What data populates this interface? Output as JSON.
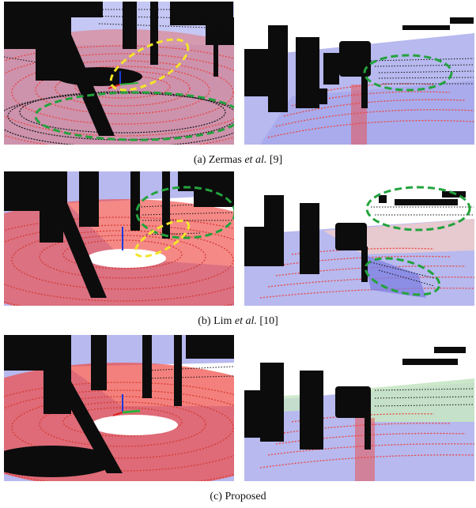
{
  "figure": {
    "rows": [
      {
        "caption_label": "(a) Zermas",
        "caption_etal": "et al.",
        "caption_ref": "[9]",
        "left_highlights": [
          "yellow-dashed-ellipse",
          "green-dashed-ellipse"
        ],
        "right_highlights": [
          "green-dashed-ellipse"
        ]
      },
      {
        "caption_label": "(b) Lim",
        "caption_etal": "et al.",
        "caption_ref": "[10]",
        "left_highlights": [
          "green-dashed-ellipse",
          "yellow-dashed-ellipse"
        ],
        "right_highlights": [
          "green-dashed-ellipse",
          "green-dashed-ellipse"
        ]
      },
      {
        "caption_label": "(c) Proposed",
        "caption_etal": "",
        "caption_ref": "",
        "left_highlights": [],
        "right_highlights": []
      }
    ],
    "colors": {
      "ground_blue": "#b3b5ee",
      "ground_points": "#ee4a45",
      "obstacle_points": "#000000",
      "highlight_yellow": "#f2e52a",
      "highlight_green": "#23a33d"
    }
  }
}
